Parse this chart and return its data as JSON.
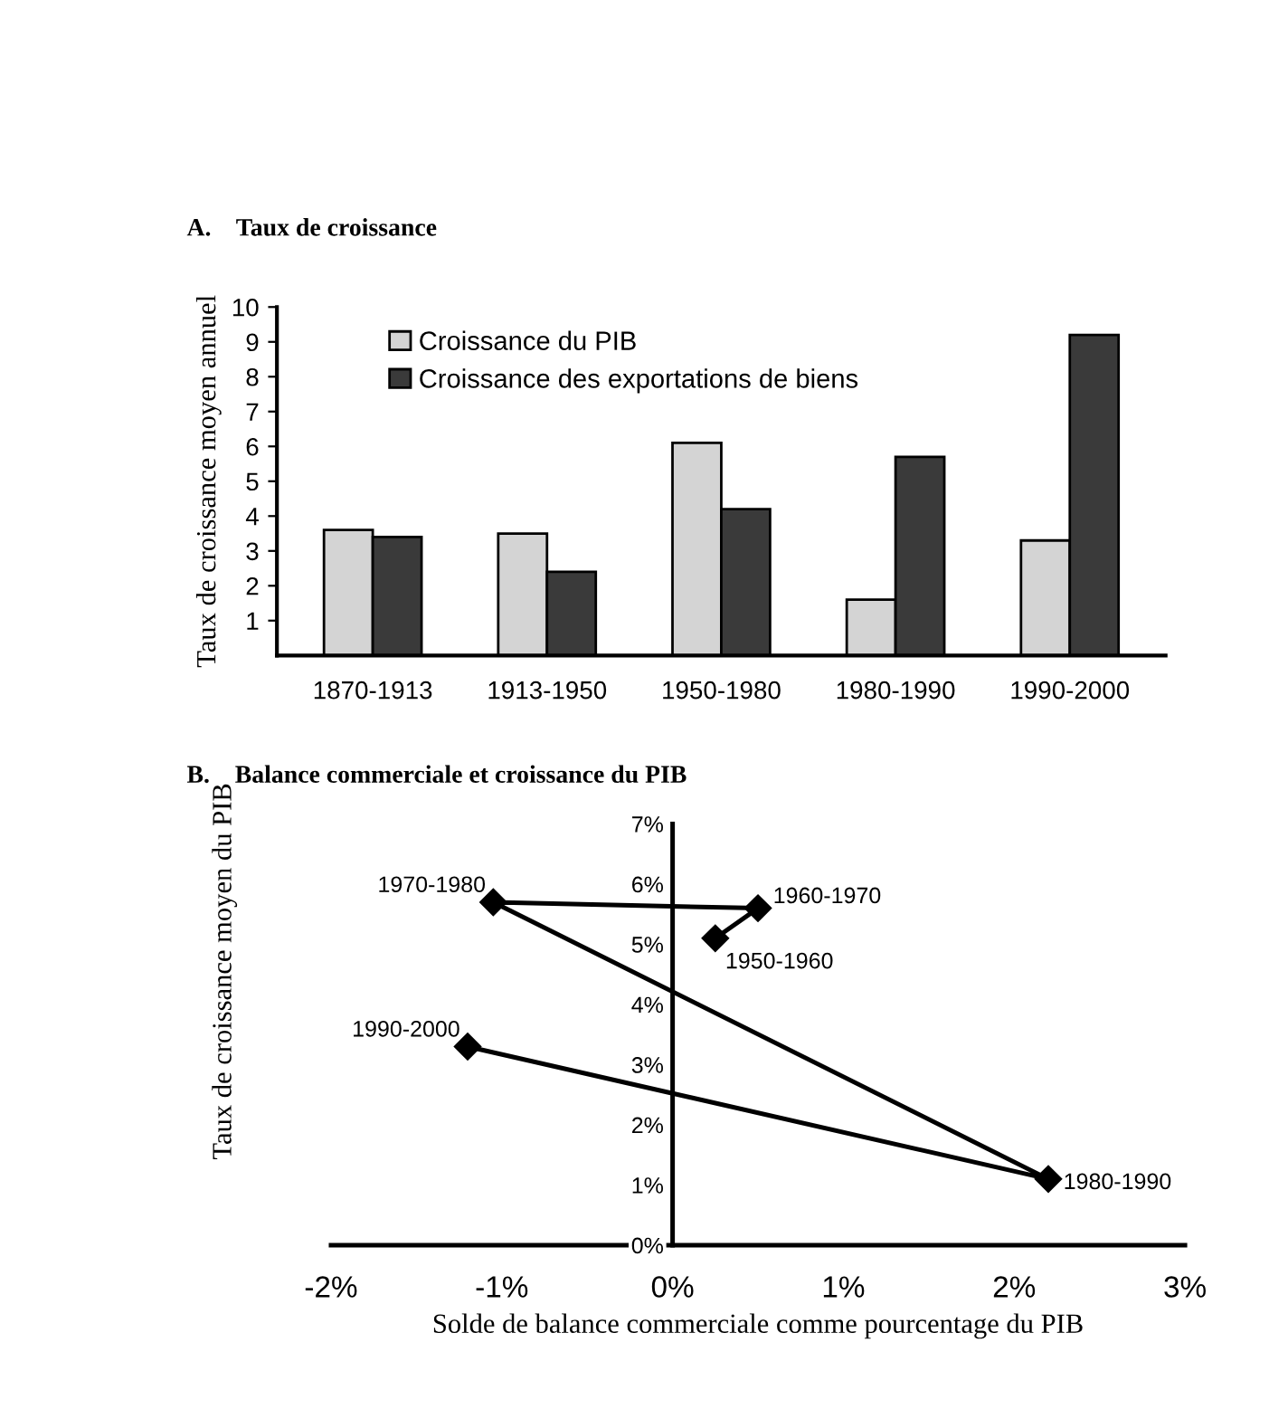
{
  "chart_data": [
    {
      "type": "bar",
      "title": "A.    Taux de croissance",
      "ylabel": "Taux de croissance moyen annuel",
      "categories": [
        "1870-1913",
        "1913-1950",
        "1950-1980",
        "1980-1990",
        "1990-2000"
      ],
      "series": [
        {
          "name": "Croissance du PIB",
          "color": "#d4d4d4",
          "values": [
            3.6,
            3.5,
            6.1,
            1.6,
            3.3
          ]
        },
        {
          "name": "Croissance des exportations de biens",
          "color": "#3a3a3a",
          "values": [
            3.4,
            2.4,
            4.2,
            5.7,
            9.2
          ]
        }
      ],
      "ylim": [
        0,
        10
      ],
      "yticks": [
        1,
        2,
        3,
        4,
        5,
        6,
        7,
        8,
        9,
        10
      ],
      "grid": false,
      "legend": "top left"
    },
    {
      "type": "line",
      "title": "B.    Balance commerciale et croissance du PIB",
      "xlabel": "Solde de balance commerciale comme pourcentage du PIB",
      "ylabel": "Taux de croissance moyen du PIB",
      "series": [
        {
          "color": "#000000",
          "x": [
            0.25,
            0.5,
            -1.05,
            2.2,
            -1.2
          ],
          "values": [
            5.1,
            5.6,
            5.7,
            1.1,
            3.3
          ]
        }
      ],
      "marker": "diamond",
      "line_style": "solid",
      "grid": false,
      "legend": false,
      "xlim": [
        -2,
        3
      ],
      "xticks": [
        {
          "value": -2,
          "label": "-2%"
        },
        {
          "value": -1,
          "label": "-1%"
        },
        {
          "value": 0,
          "label": "0%"
        },
        {
          "value": 1,
          "label": "1%"
        },
        {
          "value": 2,
          "label": "2%"
        },
        {
          "value": 3,
          "label": "3%"
        }
      ],
      "ylim": [
        0,
        7
      ],
      "yticks": [
        {
          "value": 0,
          "label": "0%"
        },
        {
          "value": 1,
          "label": "1%"
        },
        {
          "value": 2,
          "label": "2%"
        },
        {
          "value": 3,
          "label": "3%"
        },
        {
          "value": 4,
          "label": "4%"
        },
        {
          "value": 5,
          "label": "5%"
        },
        {
          "value": 6,
          "label": "6%"
        },
        {
          "value": 7,
          "label": "7%"
        }
      ],
      "annotations": [
        {
          "text": "1950-1960",
          "x": 0.25,
          "y": 5.1
        },
        {
          "text": "1960-1970",
          "x": 0.5,
          "y": 5.6
        },
        {
          "text": "1970-1980",
          "x": -1.05,
          "y": 5.7
        },
        {
          "text": "1980-1990",
          "x": 2.2,
          "y": 1.1
        },
        {
          "text": "1990-2000",
          "x": -1.2,
          "y": 3.3
        }
      ]
    }
  ]
}
